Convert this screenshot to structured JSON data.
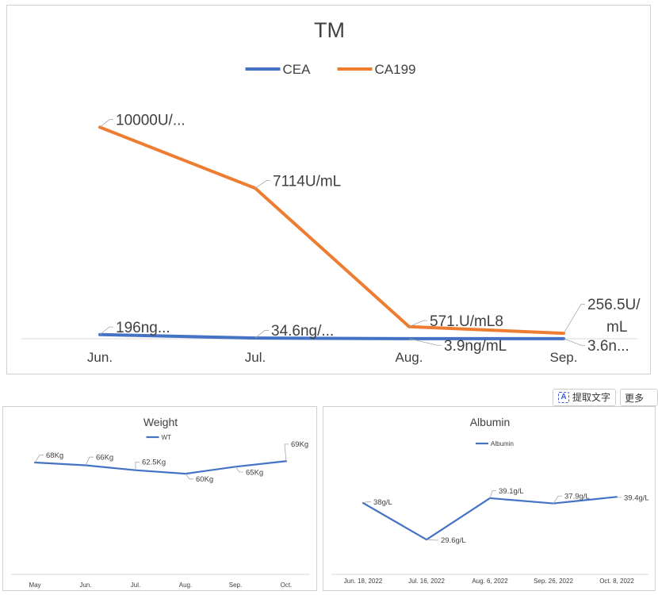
{
  "toolbar": {
    "ocr_label": "提取文字",
    "ocr_icon": "text-extract-icon",
    "more_label": "更多",
    "more_icon": "chevron-down-icon"
  },
  "chart_data": [
    {
      "type": "line",
      "title": "TM",
      "categories": [
        "Jun.",
        "Jul.",
        "Aug.",
        "Sep."
      ],
      "series": [
        {
          "name": "CEA",
          "color": "#4472C4",
          "values": [
            196,
            34.6,
            3.9,
            3.6
          ],
          "labels": [
            "196ng...",
            "34.6ng/...",
            "3.9ng/mL",
            "3.6n..."
          ]
        },
        {
          "name": "CA199",
          "color": "#ED7D31",
          "values": [
            10000,
            7114,
            571.8,
            256.5
          ],
          "labels": [
            "10000U/...",
            "7114U/mL",
            "571.U/mL8",
            "256.5U/ mL"
          ]
        }
      ],
      "ylim": [
        0,
        12000
      ],
      "grid": false,
      "legend": "top"
    },
    {
      "type": "line",
      "title": "Weight",
      "categories": [
        "May",
        "Jun.",
        "Jul.",
        "Aug.",
        "Sep.",
        "Oct."
      ],
      "series": [
        {
          "name": "WT",
          "color": "#4472C4",
          "values": [
            68,
            66,
            62.5,
            60,
            65,
            69
          ],
          "labels": [
            "68Kg",
            "66Kg",
            "62.5Kg",
            "60Kg",
            "65Kg",
            "69Kg"
          ]
        }
      ],
      "ylim": [
        0,
        85
      ],
      "grid": false,
      "legend": "top"
    },
    {
      "type": "line",
      "title": "Albumin",
      "categories": [
        "Jun. 18, 2022",
        "Jul. 16, 2022",
        "Aug. 6, 2022",
        "Sep. 26, 2022",
        "Oct. 8, 2022"
      ],
      "series": [
        {
          "name": "Albumin",
          "color": "#4472C4",
          "values": [
            38,
            29.6,
            39.1,
            37.9,
            39.4
          ],
          "labels": [
            "38g/L",
            "29.6g/L",
            "39.1g/L",
            "37.9g/L",
            "39.4g/L"
          ]
        }
      ],
      "ylim": [
        0,
        60
      ],
      "grid": false,
      "legend": "top"
    }
  ]
}
